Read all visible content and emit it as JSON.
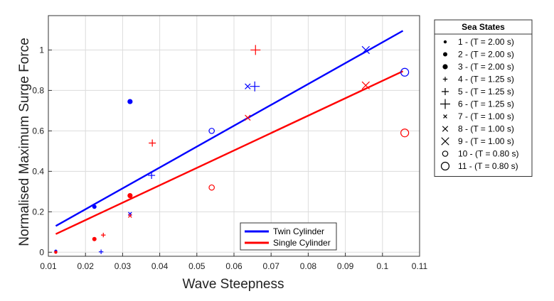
{
  "chart_data": {
    "type": "scatter",
    "xlabel": "Wave Steepness",
    "ylabel": "Normalised Maximum Surge Force",
    "xlim": [
      0.01,
      0.11
    ],
    "ylim": [
      -0.02,
      1.17
    ],
    "xticks": [
      "0.01",
      "0.02",
      "0.03",
      "0.04",
      "0.05",
      "0.06",
      "0.07",
      "0.08",
      "0.09",
      "0.1",
      "0.11"
    ],
    "yticks": [
      "0",
      "0.2",
      "0.4",
      "0.6",
      "0.8",
      "1"
    ],
    "grid": true,
    "colors": {
      "twin": "#0000ff",
      "single": "#ff0000"
    },
    "series": [
      {
        "name": "Twin Cylinder",
        "color": "#0000ff",
        "fit_line": [
          [
            0.012,
            0.13
          ],
          [
            0.1055,
            1.095
          ]
        ],
        "points": [
          {
            "x": 0.012,
            "y": 0.005,
            "state": 1
          },
          {
            "x": 0.0224,
            "y": 0.225,
            "state": 2
          },
          {
            "x": 0.032,
            "y": 0.745,
            "state": 3
          },
          {
            "x": 0.0242,
            "y": 0.002,
            "state": 4
          },
          {
            "x": 0.0378,
            "y": 0.38,
            "state": 5
          },
          {
            "x": 0.0656,
            "y": 0.82,
            "state": 6
          },
          {
            "x": 0.032,
            "y": 0.19,
            "state": 7
          },
          {
            "x": 0.0637,
            "y": 0.82,
            "state": 8
          },
          {
            "x": 0.0955,
            "y": 1.0,
            "state": 9
          },
          {
            "x": 0.054,
            "y": 0.6,
            "state": 10
          },
          {
            "x": 0.106,
            "y": 0.89,
            "state": 11
          }
        ]
      },
      {
        "name": "Single Cylinder",
        "color": "#ff0000",
        "fit_line": [
          [
            0.012,
            0.09
          ],
          [
            0.1055,
            0.895
          ]
        ],
        "points": [
          {
            "x": 0.012,
            "y": 0.0,
            "state": 1
          },
          {
            "x": 0.0224,
            "y": 0.065,
            "state": 2
          },
          {
            "x": 0.032,
            "y": 0.28,
            "state": 3
          },
          {
            "x": 0.0248,
            "y": 0.085,
            "state": 4
          },
          {
            "x": 0.038,
            "y": 0.54,
            "state": 5
          },
          {
            "x": 0.0658,
            "y": 1.0,
            "state": 6
          },
          {
            "x": 0.032,
            "y": 0.18,
            "state": 7
          },
          {
            "x": 0.0637,
            "y": 0.665,
            "state": 8
          },
          {
            "x": 0.0955,
            "y": 0.825,
            "state": 9
          },
          {
            "x": 0.054,
            "y": 0.32,
            "state": 10
          },
          {
            "x": 0.106,
            "y": 0.59,
            "state": 11
          }
        ]
      }
    ],
    "legend": {
      "placement": "bottom-right",
      "entries": [
        "Twin Cylinder",
        "Single Cylinder"
      ]
    },
    "sea_states": {
      "title": "Sea States",
      "placement": "outside-right",
      "entries": [
        {
          "label": "1 - (T = 2.00 s)",
          "marker": "dot",
          "size": "small"
        },
        {
          "label": "2 - (T = 2.00 s)",
          "marker": "dot",
          "size": "medium"
        },
        {
          "label": "3 - (T = 2.00 s)",
          "marker": "dot",
          "size": "large"
        },
        {
          "label": "4 - (T = 1.25 s)",
          "marker": "plus",
          "size": "small"
        },
        {
          "label": "5 - (T = 1.25 s)",
          "marker": "plus",
          "size": "medium"
        },
        {
          "label": "6 - (T = 1.25 s)",
          "marker": "plus",
          "size": "large"
        },
        {
          "label": "7 - (T = 1.00 s)",
          "marker": "cross",
          "size": "small"
        },
        {
          "label": "8 - (T = 1.00 s)",
          "marker": "cross",
          "size": "medium"
        },
        {
          "label": "9 - (T = 1.00 s)",
          "marker": "cross",
          "size": "large"
        },
        {
          "label": "10 - (T = 0.80 s)",
          "marker": "circle",
          "size": "small"
        },
        {
          "label": "11 - (T = 0.80 s)",
          "marker": "circle",
          "size": "medium"
        }
      ]
    }
  }
}
